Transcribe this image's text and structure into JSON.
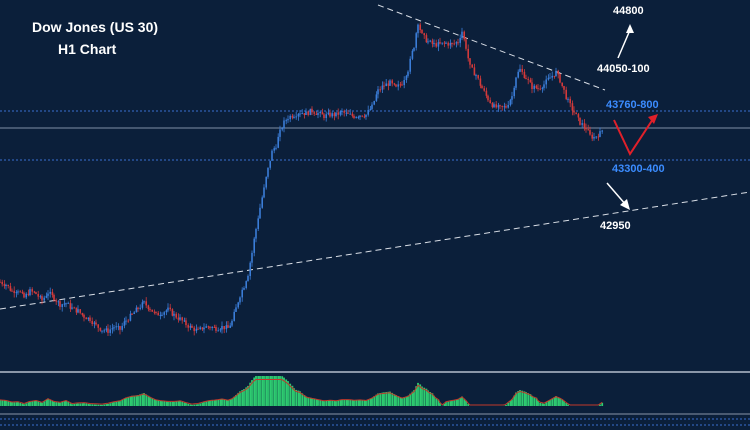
{
  "colors": {
    "background": "#0b1f3a",
    "bull": "#3b7dd8",
    "bear": "#d43a3a",
    "support_line": "#3a6fd0",
    "current_line": "#7f8fa6",
    "trendline": "#d9dee6",
    "arrow_white": "#ffffff",
    "arrow_red": "#e0202a",
    "label_white": "#ffffff",
    "label_blue": "#3b8cff",
    "histogram": "#2ecc71",
    "signal": "#c0392b"
  },
  "chart_data": {
    "type": "candlestick",
    "title": "Dow Jones (US 30)",
    "subtitle": "H1 Chart",
    "price_range": [
      41900,
      44850
    ],
    "close_path": [
      [
        0,
        42400
      ],
      [
        6,
        42380
      ],
      [
        12,
        42330
      ],
      [
        18,
        42340
      ],
      [
        24,
        42280
      ],
      [
        30,
        42330
      ],
      [
        36,
        42310
      ],
      [
        42,
        42260
      ],
      [
        48,
        42320
      ],
      [
        54,
        42280
      ],
      [
        60,
        42230
      ],
      [
        66,
        42240
      ],
      [
        72,
        42200
      ],
      [
        78,
        42180
      ],
      [
        84,
        42140
      ],
      [
        90,
        42120
      ],
      [
        96,
        42070
      ],
      [
        102,
        42040
      ],
      [
        108,
        42030
      ],
      [
        114,
        42060
      ],
      [
        120,
        42040
      ],
      [
        126,
        42110
      ],
      [
        132,
        42150
      ],
      [
        138,
        42200
      ],
      [
        144,
        42240
      ],
      [
        150,
        42200
      ],
      [
        156,
        42150
      ],
      [
        162,
        42170
      ],
      [
        168,
        42190
      ],
      [
        174,
        42150
      ],
      [
        180,
        42120
      ],
      [
        186,
        42080
      ],
      [
        192,
        42050
      ],
      [
        198,
        42030
      ],
      [
        204,
        42060
      ],
      [
        210,
        42060
      ],
      [
        216,
        42050
      ],
      [
        222,
        42060
      ],
      [
        228,
        42050
      ],
      [
        232,
        42100
      ],
      [
        236,
        42200
      ],
      [
        240,
        42300
      ],
      [
        244,
        42370
      ],
      [
        248,
        42460
      ],
      [
        252,
        42620
      ],
      [
        256,
        42800
      ],
      [
        260,
        42960
      ],
      [
        264,
        43100
      ],
      [
        268,
        43250
      ],
      [
        272,
        43380
      ],
      [
        276,
        43430
      ],
      [
        280,
        43530
      ],
      [
        284,
        43600
      ],
      [
        288,
        43640
      ],
      [
        294,
        43660
      ],
      [
        300,
        43680
      ],
      [
        306,
        43670
      ],
      [
        312,
        43690
      ],
      [
        318,
        43670
      ],
      [
        324,
        43650
      ],
      [
        330,
        43660
      ],
      [
        336,
        43660
      ],
      [
        342,
        43680
      ],
      [
        348,
        43660
      ],
      [
        354,
        43650
      ],
      [
        360,
        43660
      ],
      [
        366,
        43660
      ],
      [
        372,
        43720
      ],
      [
        378,
        43840
      ],
      [
        384,
        43880
      ],
      [
        390,
        43900
      ],
      [
        396,
        43860
      ],
      [
        402,
        43900
      ],
      [
        408,
        44000
      ],
      [
        414,
        44180
      ],
      [
        418,
        44360
      ],
      [
        422,
        44260
      ],
      [
        428,
        44210
      ],
      [
        434,
        44190
      ],
      [
        440,
        44190
      ],
      [
        446,
        44200
      ],
      [
        452,
        44190
      ],
      [
        458,
        44210
      ],
      [
        462,
        44290
      ],
      [
        466,
        44170
      ],
      [
        470,
        44020
      ],
      [
        476,
        43960
      ],
      [
        482,
        43860
      ],
      [
        488,
        43780
      ],
      [
        494,
        43720
      ],
      [
        500,
        43710
      ],
      [
        506,
        43720
      ],
      [
        512,
        43800
      ],
      [
        516,
        43950
      ],
      [
        520,
        44000
      ],
      [
        526,
        43940
      ],
      [
        532,
        43870
      ],
      [
        538,
        43860
      ],
      [
        544,
        43890
      ],
      [
        550,
        43940
      ],
      [
        556,
        43980
      ],
      [
        560,
        43920
      ],
      [
        564,
        43840
      ],
      [
        568,
        43760
      ],
      [
        574,
        43680
      ],
      [
        580,
        43600
      ],
      [
        586,
        43560
      ],
      [
        590,
        43500
      ],
      [
        594,
        43490
      ],
      [
        600,
        43520
      ],
      [
        604,
        43560
      ]
    ]
  },
  "levels": {
    "top": "44800",
    "resistance_2": "44050-100",
    "resistance_1": "43760-800",
    "support_1": "43300-400",
    "support_2": "42950"
  }
}
